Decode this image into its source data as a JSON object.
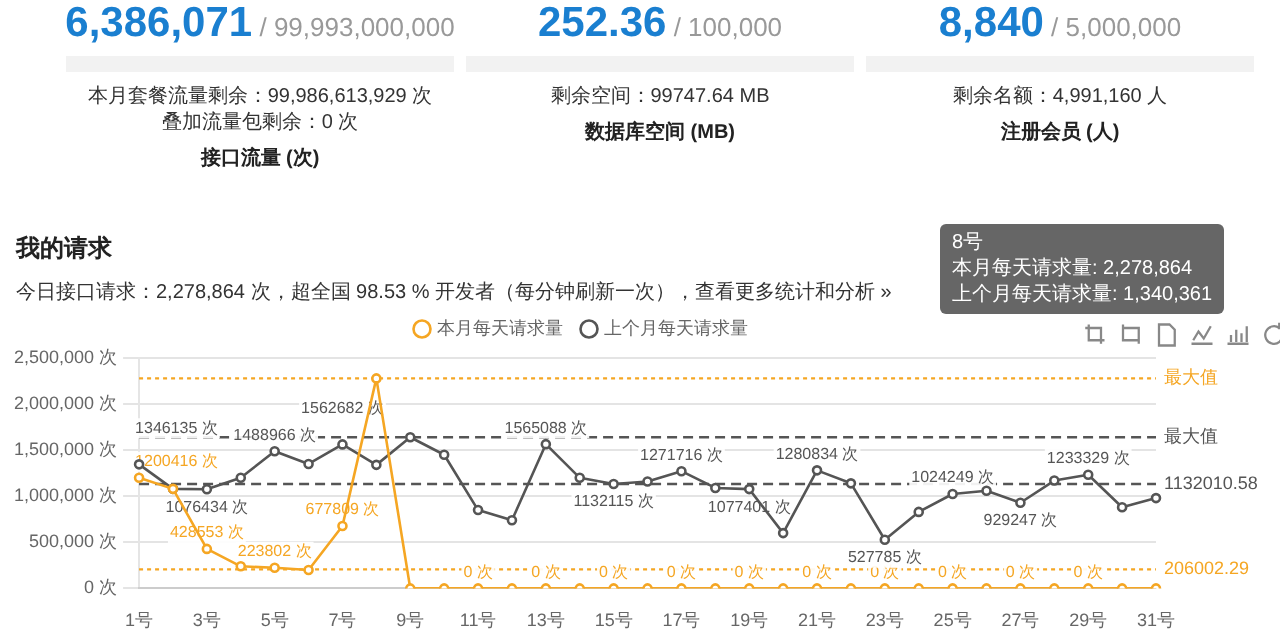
{
  "chart_data": [
    {
      "type": "other",
      "title": "接口流量 (次)",
      "annotations": [
        "6,386,071",
        "/ 99,993,000,000",
        "本月套餐流量剩余：99,986,613,929 次",
        "叠加流量包剩余：0 次"
      ]
    },
    {
      "type": "other",
      "title": "数据库空间 (MB)",
      "annotations": [
        "252.36",
        "/ 100,000",
        "剩余空间：99747.64 MB"
      ]
    },
    {
      "type": "other",
      "title": "注册会员 (人)",
      "annotations": [
        "8,840",
        "/ 5,000,000",
        "剩余名额：4,991,160 人"
      ]
    },
    {
      "type": "line",
      "title": "我的请求",
      "subtitle": "今日接口请求：2,278,864 次，超全国 98.53 % 开发者（每分钟刷新一次），查看更多统计和分析 »",
      "annotations": [
        "8号",
        "本月每天请求量: 2,278,864",
        "上个月每天请求量: 1,340,361"
      ],
      "categories": [
        "1号",
        null,
        "3号",
        null,
        "5号",
        null,
        "7号",
        null,
        "9号",
        null,
        "11号",
        null,
        "13号",
        null,
        "15号",
        null,
        "17号",
        null,
        "19号",
        null,
        "21号",
        null,
        "23号",
        null,
        "25号",
        null,
        "27号",
        null,
        "29号",
        null,
        "31号"
      ],
      "series": [
        {
          "name": "本月每天请求量",
          "color": "#f5a623",
          "values": [
            1200416,
            1080000,
            428553,
            240000,
            223802,
            200000,
            677809,
            2278864,
            0,
            0,
            0,
            0,
            0,
            0,
            0,
            0,
            0,
            0,
            0,
            0,
            0,
            0,
            0,
            0,
            0,
            0,
            0,
            0,
            0,
            0,
            0
          ],
          "value_labels": [
            "1200416 次",
            null,
            "428553 次",
            null,
            "223802 次",
            null,
            "677809 次",
            null,
            null,
            null,
            "0 次",
            null,
            "0 次",
            null,
            "0 次",
            null,
            "0 次",
            null,
            "0 次",
            null,
            "0 次",
            null,
            "0 次",
            null,
            "0 次",
            null,
            "0 次",
            null,
            "0 次",
            null,
            null
          ]
        },
        {
          "name": "上个月每天请求量",
          "color": "#555555",
          "values": [
            1346135,
            1080000,
            1076434,
            1200000,
            1488966,
            1350000,
            1562682,
            1340361,
            1640000,
            1450000,
            850000,
            740000,
            1565088,
            1200000,
            1132115,
            1160000,
            1271716,
            1090000,
            1077401,
            600000,
            1280834,
            1140000,
            527785,
            830000,
            1024249,
            1060000,
            929247,
            1170000,
            1233329,
            880000,
            980000
          ],
          "value_labels": [
            "1346135 次",
            null,
            "1076434 次",
            null,
            "1488966 次",
            null,
            "1562682 次",
            null,
            null,
            null,
            null,
            null,
            "1565088 次",
            null,
            "1132115 次",
            null,
            "1271716 次",
            null,
            "1077401 次",
            null,
            "1280834 次",
            null,
            "527785 次",
            null,
            "1024249 次",
            null,
            "929247 次",
            null,
            "1233329 次",
            null,
            null
          ]
        }
      ],
      "ylim": [
        0,
        2500000
      ],
      "yticks": [
        {
          "value": 0,
          "label": "0 次"
        },
        {
          "value": 500000,
          "label": "500,000 次"
        },
        {
          "value": 1000000,
          "label": "1,000,000 次"
        },
        {
          "value": 1500000,
          "label": "1,500,000 次"
        },
        {
          "value": 2000000,
          "label": "2,000,000 次"
        },
        {
          "value": 2500000,
          "label": "2,500,000 次"
        }
      ],
      "ref_lines": [
        {
          "axis": "y",
          "value": 2278864,
          "label": "最大值",
          "color": "#f5a623",
          "line_style": "dotted"
        },
        {
          "axis": "y",
          "value": 1640000,
          "label": "最大值",
          "color": "#555555",
          "line_style": "dashed"
        },
        {
          "axis": "y",
          "value": 1132010.58,
          "label": "1132010.58",
          "color": "#555555",
          "line_style": "dashed"
        },
        {
          "axis": "y",
          "value": 206002.29,
          "label": "206002.29",
          "color": "#f5a623",
          "line_style": "dotted"
        }
      ],
      "grid": "y",
      "legend": "top",
      "marker": "circle",
      "line_style": "solid"
    }
  ]
}
